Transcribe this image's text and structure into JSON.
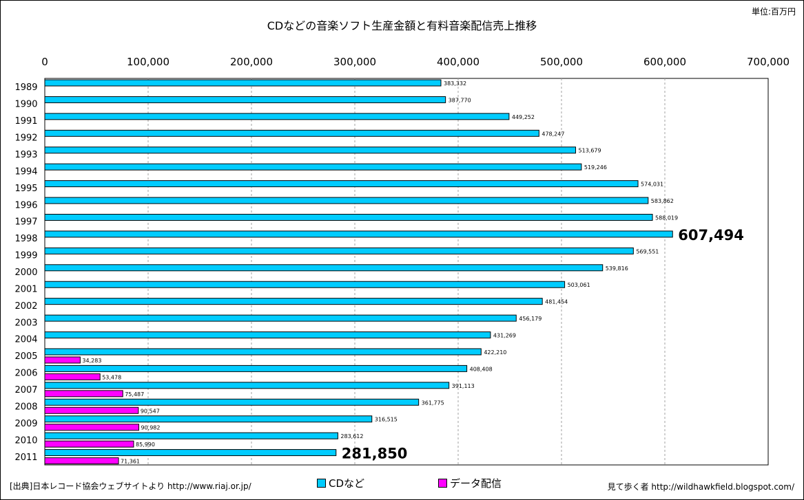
{
  "header": {
    "title": "CDなどの音楽ソフト生産金額と有料音楽配信売上推移",
    "unit": "単位:百万円"
  },
  "footer": {
    "source": "[出典]日本レコード協会ウェブサイトより http://www.riaj.or.jp/",
    "credit": "見て歩く者 http://wildhawkfield.blogspot.com/"
  },
  "legend": {
    "cd_label": "CDなど",
    "digital_label": "データ配信"
  },
  "colors": {
    "cd": "#00ccff",
    "digital": "#ff00ff",
    "grid": "#a0a0a0"
  },
  "chart_data": {
    "type": "bar",
    "orientation": "horizontal",
    "xlim": [
      0,
      700000
    ],
    "x_ticks": [
      "0",
      "100,000",
      "200,000",
      "300,000",
      "400,000",
      "500,000",
      "600,000",
      "700,000"
    ],
    "grid": true,
    "legend_position": "bottom",
    "categories": [
      "1989",
      "1990",
      "1991",
      "1992",
      "1993",
      "1994",
      "1995",
      "1996",
      "1997",
      "1998",
      "1999",
      "2000",
      "2001",
      "2002",
      "2003",
      "2004",
      "2005",
      "2006",
      "2007",
      "2008",
      "2009",
      "2010",
      "2011"
    ],
    "series": [
      {
        "name": "CDなど",
        "values": [
          383332,
          387770,
          449252,
          478247,
          513679,
          519246,
          574031,
          583862,
          588019,
          607494,
          569551,
          539816,
          503061,
          481454,
          456179,
          431269,
          422210,
          408408,
          391113,
          361775,
          316515,
          283612,
          281850
        ],
        "labels": [
          "383,332",
          "387,770",
          "449,252",
          "478,247",
          "513,679",
          "519,246",
          "574,031",
          "583,862",
          "588,019",
          "607,494",
          "569,551",
          "539,816",
          "503,061",
          "481,454",
          "456,179",
          "431,269",
          "422,210",
          "408,408",
          "391,113",
          "361,775",
          "316,515",
          "283,612",
          "281,850"
        ]
      },
      {
        "name": "データ配信",
        "values": [
          null,
          null,
          null,
          null,
          null,
          null,
          null,
          null,
          null,
          null,
          null,
          null,
          null,
          null,
          null,
          null,
          34283,
          53478,
          75487,
          90547,
          90982,
          85990,
          71361
        ],
        "labels": [
          null,
          null,
          null,
          null,
          null,
          null,
          null,
          null,
          null,
          null,
          null,
          null,
          null,
          null,
          null,
          null,
          "34,283",
          "53,478",
          "75,487",
          "90,547",
          "90,982",
          "85,990",
          "71,361"
        ]
      }
    ],
    "highlighted_labels": [
      "1998",
      "2011"
    ]
  }
}
